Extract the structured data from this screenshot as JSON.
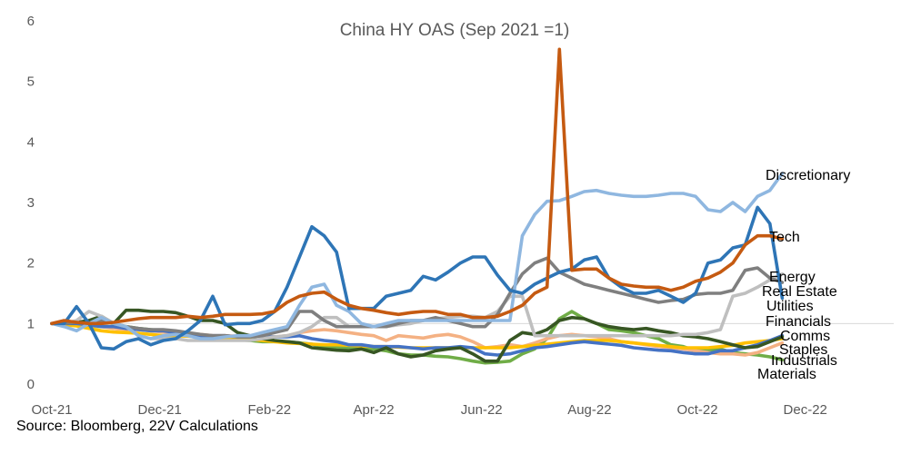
{
  "chart_data": {
    "type": "line",
    "title": "China HY OAS (Sep 2021 =1)",
    "source": "Source: Bloomberg, 22V Calculations",
    "xlabel": "",
    "ylabel": "",
    "ylim": [
      0,
      6
    ],
    "y_ticks": [
      "0",
      "1",
      "2",
      "3",
      "4",
      "5",
      "6"
    ],
    "x_ticks": [
      "Oct-21",
      "Dec-21",
      "Feb-22",
      "Apr-22",
      "Jun-22",
      "Aug-22",
      "Oct-22",
      "Dec-22"
    ],
    "x_tick_dates": [
      "2021-10-01",
      "2021-12-01",
      "2022-02-01",
      "2022-04-01",
      "2022-06-01",
      "2022-08-01",
      "2022-10-01",
      "2022-12-01"
    ],
    "x_range": [
      "2021-10-01",
      "2023-01-20"
    ],
    "reference_line": 1,
    "dates": [
      "2021-10-01",
      "2021-10-08",
      "2021-10-15",
      "2021-10-22",
      "2021-10-29",
      "2021-11-05",
      "2021-11-12",
      "2021-11-19",
      "2021-11-26",
      "2021-12-03",
      "2021-12-10",
      "2021-12-17",
      "2021-12-24",
      "2021-12-31",
      "2022-01-07",
      "2022-01-14",
      "2022-01-21",
      "2022-01-28",
      "2022-02-04",
      "2022-02-11",
      "2022-02-18",
      "2022-02-25",
      "2022-03-04",
      "2022-03-11",
      "2022-03-18",
      "2022-03-25",
      "2022-04-01",
      "2022-04-08",
      "2022-04-15",
      "2022-04-22",
      "2022-04-29",
      "2022-05-06",
      "2022-05-13",
      "2022-05-20",
      "2022-05-27",
      "2022-06-03",
      "2022-06-10",
      "2022-06-17",
      "2022-06-24",
      "2022-07-01",
      "2022-07-08",
      "2022-07-15",
      "2022-07-22",
      "2022-07-29",
      "2022-08-05",
      "2022-08-12",
      "2022-08-19",
      "2022-08-26",
      "2022-09-02",
      "2022-09-09",
      "2022-09-16",
      "2022-09-23",
      "2022-09-30",
      "2022-10-07",
      "2022-10-14",
      "2022-10-21",
      "2022-10-28",
      "2022-11-04",
      "2022-11-11",
      "2022-11-18"
    ],
    "series": [
      {
        "name": "Discretionary",
        "color": "#8fb7e0",
        "values": [
          1,
          0.95,
          0.88,
          1.0,
          1.1,
          1.0,
          0.95,
          0.8,
          0.75,
          0.8,
          0.82,
          0.8,
          0.75,
          0.75,
          0.78,
          0.8,
          0.8,
          0.85,
          0.9,
          0.95,
          1.3,
          1.6,
          1.65,
          1.3,
          1.2,
          1.0,
          0.95,
          1.0,
          1.05,
          1.05,
          1.05,
          1.05,
          1.05,
          1.05,
          1.05,
          1.05,
          1.05,
          1.05,
          2.45,
          2.8,
          3.02,
          3.03,
          3.1,
          3.18,
          3.2,
          3.15,
          3.12,
          3.1,
          3.1,
          3.12,
          3.15,
          3.15,
          3.1,
          2.88,
          2.85,
          3.0,
          2.85,
          3.1,
          3.2,
          3.48
        ]
      },
      {
        "name": "Tech",
        "color": "#c55a11",
        "values": [
          1,
          1.05,
          1.02,
          1.0,
          1.0,
          1.02,
          1.05,
          1.08,
          1.1,
          1.1,
          1.1,
          1.12,
          1.1,
          1.12,
          1.15,
          1.15,
          1.15,
          1.16,
          1.2,
          1.35,
          1.45,
          1.5,
          1.52,
          1.4,
          1.3,
          1.25,
          1.22,
          1.18,
          1.15,
          1.18,
          1.2,
          1.2,
          1.15,
          1.15,
          1.1,
          1.1,
          1.12,
          1.2,
          1.3,
          1.5,
          1.6,
          5.53,
          1.88,
          1.9,
          1.9,
          1.75,
          1.65,
          1.62,
          1.6,
          1.6,
          1.55,
          1.6,
          1.7,
          1.75,
          1.85,
          2.0,
          2.3,
          2.45,
          2.45,
          2.4
        ]
      },
      {
        "name": "Energy",
        "color": "#7f7f7f",
        "values": [
          1,
          1.0,
          1.02,
          1.0,
          1.05,
          1.0,
          0.95,
          0.92,
          0.9,
          0.9,
          0.88,
          0.85,
          0.82,
          0.8,
          0.8,
          0.78,
          0.78,
          0.8,
          0.85,
          0.9,
          1.2,
          1.2,
          1.05,
          0.95,
          0.95,
          0.95,
          0.95,
          0.95,
          1.0,
          1.05,
          1.05,
          1.1,
          1.05,
          1.0,
          0.95,
          0.95,
          1.15,
          1.5,
          1.82,
          2.0,
          2.08,
          1.85,
          1.75,
          1.65,
          1.6,
          1.55,
          1.5,
          1.45,
          1.4,
          1.35,
          1.38,
          1.4,
          1.48,
          1.5,
          1.5,
          1.55,
          1.88,
          1.92,
          1.75,
          1.68
        ]
      },
      {
        "name": "Real Estate",
        "color": "#bfbfbf",
        "values": [
          1,
          1.0,
          1.05,
          1.2,
          1.12,
          1.0,
          0.95,
          0.8,
          0.75,
          0.75,
          0.75,
          0.72,
          0.72,
          0.72,
          0.72,
          0.72,
          0.72,
          0.75,
          0.78,
          0.8,
          0.85,
          0.95,
          1.1,
          1.1,
          0.95,
          0.95,
          0.95,
          0.95,
          0.98,
          1.0,
          1.05,
          1.08,
          1.1,
          1.12,
          1.12,
          1.1,
          1.2,
          1.45,
          1.45,
          0.8,
          0.8,
          0.8,
          0.8,
          0.8,
          0.8,
          0.8,
          0.8,
          0.8,
          0.8,
          0.8,
          0.8,
          0.82,
          0.82,
          0.85,
          0.9,
          1.45,
          1.5,
          1.6,
          1.72,
          1.82
        ]
      },
      {
        "name": "Utilities",
        "color": "#2e75b6",
        "values": [
          1,
          1.0,
          1.28,
          1.0,
          0.6,
          0.58,
          0.7,
          0.75,
          0.65,
          0.72,
          0.75,
          0.88,
          1.05,
          1.45,
          0.98,
          1.0,
          1.0,
          1.05,
          1.2,
          1.6,
          2.1,
          2.6,
          2.45,
          2.18,
          1.25,
          1.25,
          1.25,
          1.45,
          1.5,
          1.55,
          1.78,
          1.72,
          1.85,
          2.0,
          2.1,
          2.1,
          1.8,
          1.55,
          1.5,
          1.65,
          1.75,
          1.85,
          1.9,
          2.05,
          2.1,
          1.75,
          1.6,
          1.5,
          1.5,
          1.55,
          1.45,
          1.35,
          1.5,
          2.0,
          2.05,
          2.25,
          2.3,
          2.92,
          2.65,
          1.42
        ]
      },
      {
        "name": "Financials",
        "color": "#375623",
        "values": [
          1,
          1.0,
          1.02,
          1.05,
          1.12,
          1.0,
          1.22,
          1.22,
          1.2,
          1.2,
          1.18,
          1.12,
          1.05,
          1.05,
          1.0,
          0.85,
          0.8,
          0.75,
          0.72,
          0.7,
          0.68,
          0.6,
          0.58,
          0.56,
          0.55,
          0.58,
          0.52,
          0.6,
          0.5,
          0.45,
          0.48,
          0.55,
          0.58,
          0.6,
          0.5,
          0.38,
          0.38,
          0.72,
          0.85,
          0.82,
          0.9,
          1.05,
          1.1,
          1.08,
          1.0,
          0.95,
          0.92,
          0.9,
          0.92,
          0.88,
          0.85,
          0.8,
          0.78,
          0.75,
          0.7,
          0.65,
          0.6,
          0.62,
          0.7,
          0.78
        ]
      },
      {
        "name": "Comms",
        "color": "#4472c4",
        "values": [
          1,
          1.0,
          1.0,
          0.98,
          0.95,
          0.95,
          0.92,
          0.9,
          0.88,
          0.88,
          0.85,
          0.82,
          0.8,
          0.8,
          0.8,
          0.78,
          0.78,
          0.78,
          0.78,
          0.78,
          0.8,
          0.75,
          0.72,
          0.7,
          0.65,
          0.65,
          0.62,
          0.62,
          0.62,
          0.6,
          0.58,
          0.6,
          0.6,
          0.62,
          0.6,
          0.5,
          0.48,
          0.5,
          0.55,
          0.6,
          0.62,
          0.65,
          0.68,
          0.7,
          0.68,
          0.66,
          0.64,
          0.6,
          0.58,
          0.56,
          0.55,
          0.52,
          0.5,
          0.5,
          0.55,
          0.55,
          0.6,
          0.65,
          0.72,
          0.8
        ]
      },
      {
        "name": "Staples",
        "color": "#ffc000",
        "values": [
          1,
          0.98,
          0.96,
          0.92,
          0.88,
          0.86,
          0.85,
          0.84,
          0.82,
          0.8,
          0.8,
          0.79,
          0.78,
          0.77,
          0.76,
          0.75,
          0.74,
          0.72,
          0.7,
          0.68,
          0.67,
          0.66,
          0.65,
          0.65,
          0.64,
          0.63,
          0.62,
          0.62,
          0.61,
          0.6,
          0.6,
          0.6,
          0.6,
          0.6,
          0.6,
          0.6,
          0.6,
          0.6,
          0.62,
          0.64,
          0.66,
          0.68,
          0.7,
          0.72,
          0.72,
          0.72,
          0.7,
          0.68,
          0.66,
          0.64,
          0.62,
          0.6,
          0.6,
          0.6,
          0.62,
          0.64,
          0.68,
          0.7,
          0.72,
          0.75
        ]
      },
      {
        "name": "Industrials",
        "color": "#f4b183",
        "values": [
          1,
          1.0,
          0.98,
          0.97,
          0.95,
          0.92,
          0.9,
          0.9,
          0.88,
          0.86,
          0.85,
          0.84,
          0.82,
          0.8,
          0.8,
          0.79,
          0.78,
          0.78,
          0.78,
          0.8,
          0.85,
          0.88,
          0.9,
          0.88,
          0.85,
          0.82,
          0.8,
          0.72,
          0.8,
          0.78,
          0.76,
          0.8,
          0.82,
          0.78,
          0.7,
          0.6,
          0.62,
          0.65,
          0.62,
          0.68,
          0.75,
          0.8,
          0.82,
          0.8,
          0.78,
          0.75,
          0.7,
          0.68,
          0.65,
          0.62,
          0.6,
          0.58,
          0.55,
          0.52,
          0.5,
          0.5,
          0.48,
          0.52,
          0.6,
          0.68
        ]
      },
      {
        "name": "Materials",
        "color": "#70ad47",
        "values": [
          1,
          1.0,
          0.98,
          0.96,
          0.95,
          0.95,
          0.95,
          0.92,
          0.9,
          0.88,
          0.85,
          0.82,
          0.8,
          0.78,
          0.75,
          0.73,
          0.72,
          0.7,
          0.7,
          0.7,
          0.68,
          0.66,
          0.62,
          0.6,
          0.6,
          0.58,
          0.58,
          0.55,
          0.5,
          0.48,
          0.48,
          0.46,
          0.45,
          0.42,
          0.38,
          0.35,
          0.36,
          0.38,
          0.5,
          0.58,
          0.75,
          1.08,
          1.2,
          1.08,
          1.0,
          0.9,
          0.88,
          0.85,
          0.8,
          0.75,
          0.65,
          0.62,
          0.55,
          0.55,
          0.58,
          0.52,
          0.5,
          0.48,
          0.45,
          0.4
        ]
      }
    ],
    "end_labels": [
      {
        "text": "Discretionary"
      },
      {
        "text": "Tech"
      },
      {
        "text": "Energy"
      },
      {
        "text": "Real Estate"
      },
      {
        "text": "Utilities"
      },
      {
        "text": "Financials"
      },
      {
        "text": "Comms"
      },
      {
        "text": "Staples"
      },
      {
        "text": "Industrials"
      },
      {
        "text": "Materials"
      }
    ]
  }
}
